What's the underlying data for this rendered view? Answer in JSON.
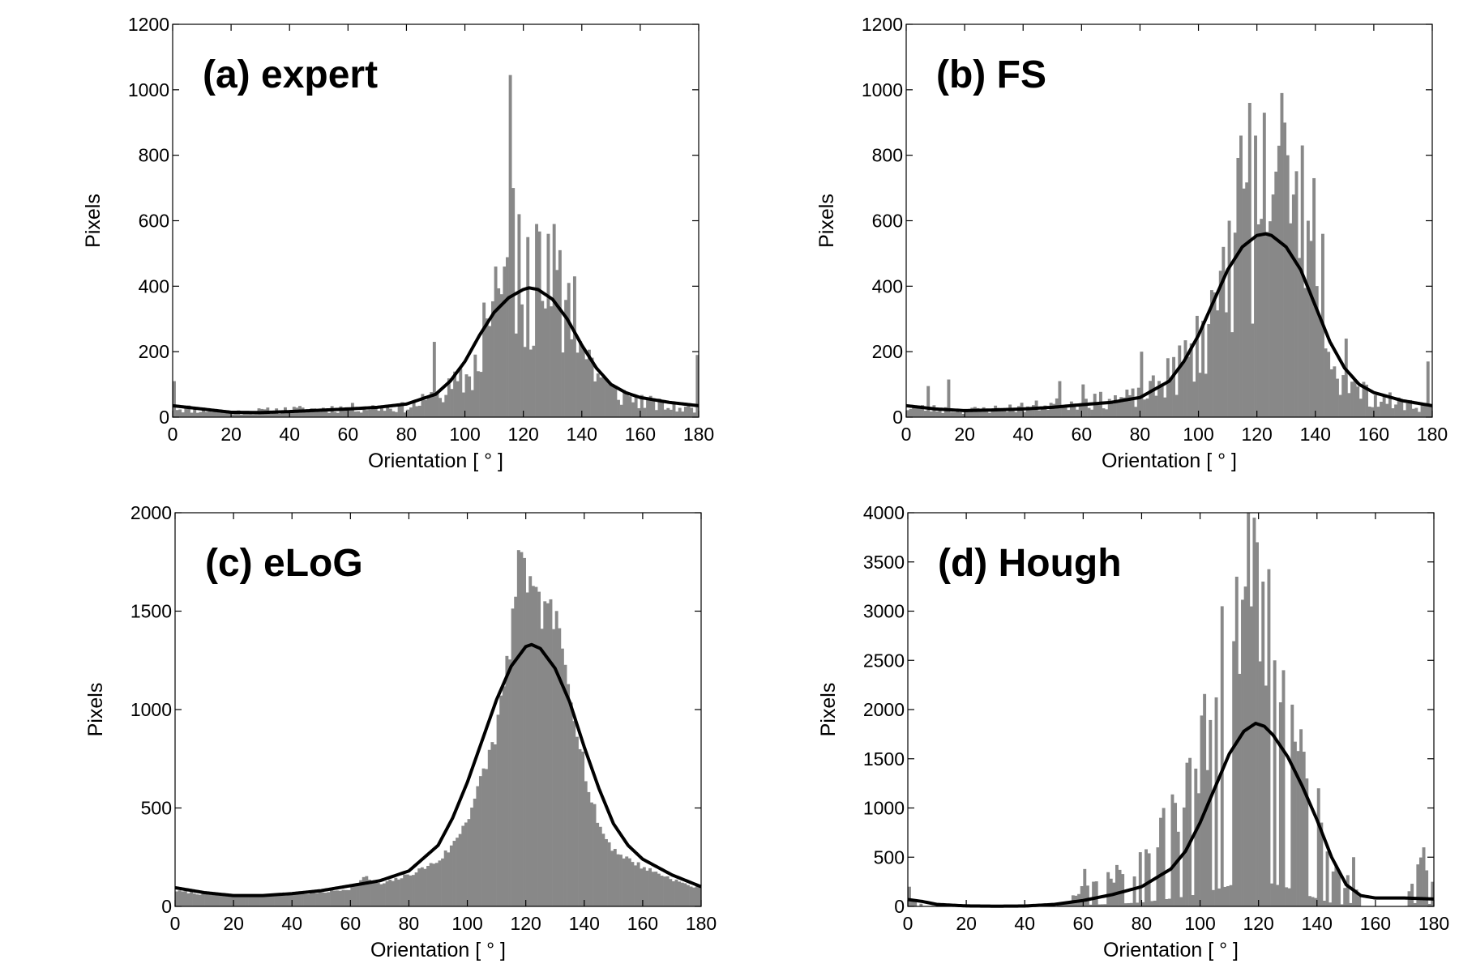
{
  "figure": {
    "width": 1800,
    "height": 1200
  },
  "colors": {
    "bar": "#888888",
    "fit": "#000000",
    "axis": "#000000"
  },
  "chart_data": [
    {
      "type": "bar",
      "title": "(a) expert",
      "xlabel": "Orientation [ ° ]",
      "ylabel": "Pixels",
      "xlim": [
        0,
        180
      ],
      "ylim": [
        0,
        1200
      ],
      "xticks": [
        0,
        20,
        40,
        60,
        80,
        100,
        120,
        140,
        160,
        180
      ],
      "yticks": [
        0,
        200,
        400,
        600,
        800,
        1000,
        1200
      ],
      "hist_profile": [
        [
          0,
          30
        ],
        [
          20,
          15
        ],
        [
          40,
          22
        ],
        [
          60,
          28
        ],
        [
          80,
          30
        ],
        [
          90,
          60
        ],
        [
          100,
          110
        ],
        [
          105,
          180
        ],
        [
          110,
          330
        ],
        [
          115,
          380
        ],
        [
          120,
          410
        ],
        [
          125,
          390
        ],
        [
          130,
          370
        ],
        [
          135,
          300
        ],
        [
          140,
          220
        ],
        [
          145,
          140
        ],
        [
          150,
          80
        ],
        [
          160,
          50
        ],
        [
          170,
          30
        ],
        [
          180,
          25
        ]
      ],
      "spikes": [
        [
          0,
          110
        ],
        [
          89,
          230
        ],
        [
          106,
          350
        ],
        [
          110,
          460
        ],
        [
          113,
          460
        ],
        [
          115,
          1045
        ],
        [
          116,
          700
        ],
        [
          118,
          620
        ],
        [
          121,
          550
        ],
        [
          124,
          590
        ],
        [
          128,
          560
        ],
        [
          130,
          590
        ],
        [
          132,
          510
        ],
        [
          135,
          410
        ],
        [
          137,
          430
        ],
        [
          179,
          190
        ],
        [
          180,
          110
        ]
      ],
      "fit_profile": [
        [
          0,
          35
        ],
        [
          10,
          25
        ],
        [
          20,
          15
        ],
        [
          30,
          14
        ],
        [
          40,
          17
        ],
        [
          50,
          21
        ],
        [
          60,
          25
        ],
        [
          70,
          30
        ],
        [
          80,
          40
        ],
        [
          90,
          70
        ],
        [
          95,
          110
        ],
        [
          100,
          170
        ],
        [
          105,
          250
        ],
        [
          110,
          320
        ],
        [
          115,
          365
        ],
        [
          120,
          390
        ],
        [
          122,
          395
        ],
        [
          125,
          390
        ],
        [
          130,
          360
        ],
        [
          135,
          300
        ],
        [
          140,
          220
        ],
        [
          145,
          150
        ],
        [
          150,
          100
        ],
        [
          155,
          75
        ],
        [
          160,
          60
        ],
        [
          170,
          45
        ],
        [
          180,
          35
        ]
      ],
      "seed": 11
    },
    {
      "type": "bar",
      "title": "(b) FS",
      "xlabel": "Orientation [ ° ]",
      "ylabel": "Pixels",
      "xlim": [
        0,
        180
      ],
      "ylim": [
        0,
        1200
      ],
      "xticks": [
        0,
        20,
        40,
        60,
        80,
        100,
        120,
        140,
        160,
        180
      ],
      "yticks": [
        0,
        200,
        400,
        600,
        800,
        1000,
        1200
      ],
      "hist_profile": [
        [
          0,
          30
        ],
        [
          20,
          20
        ],
        [
          40,
          30
        ],
        [
          60,
          45
        ],
        [
          80,
          60
        ],
        [
          90,
          110
        ],
        [
          100,
          220
        ],
        [
          105,
          320
        ],
        [
          110,
          480
        ],
        [
          115,
          620
        ],
        [
          120,
          640
        ],
        [
          125,
          620
        ],
        [
          130,
          600
        ],
        [
          135,
          480
        ],
        [
          140,
          330
        ],
        [
          145,
          190
        ],
        [
          150,
          100
        ],
        [
          160,
          60
        ],
        [
          170,
          40
        ],
        [
          180,
          30
        ]
      ],
      "spikes": [
        [
          7,
          95
        ],
        [
          14,
          115
        ],
        [
          52,
          110
        ],
        [
          60,
          100
        ],
        [
          80,
          200
        ],
        [
          89,
          180
        ],
        [
          108,
          520
        ],
        [
          110,
          600
        ],
        [
          114,
          860
        ],
        [
          117,
          960
        ],
        [
          119,
          860
        ],
        [
          122,
          930
        ],
        [
          126,
          750
        ],
        [
          128,
          990
        ],
        [
          130,
          800
        ],
        [
          132,
          680
        ],
        [
          135,
          830
        ],
        [
          137,
          600
        ],
        [
          139,
          730
        ],
        [
          142,
          560
        ],
        [
          150,
          240
        ],
        [
          178,
          170
        ]
      ],
      "fit_profile": [
        [
          0,
          35
        ],
        [
          10,
          25
        ],
        [
          20,
          20
        ],
        [
          30,
          22
        ],
        [
          40,
          25
        ],
        [
          50,
          30
        ],
        [
          60,
          38
        ],
        [
          70,
          45
        ],
        [
          80,
          60
        ],
        [
          90,
          110
        ],
        [
          95,
          170
        ],
        [
          100,
          250
        ],
        [
          105,
          350
        ],
        [
          110,
          450
        ],
        [
          115,
          520
        ],
        [
          120,
          555
        ],
        [
          123,
          560
        ],
        [
          125,
          555
        ],
        [
          130,
          520
        ],
        [
          135,
          450
        ],
        [
          140,
          340
        ],
        [
          145,
          230
        ],
        [
          150,
          150
        ],
        [
          155,
          100
        ],
        [
          160,
          75
        ],
        [
          170,
          50
        ],
        [
          180,
          35
        ]
      ],
      "seed": 23
    },
    {
      "type": "bar",
      "title": "(c) eLoG",
      "xlabel": "Orientation [ ° ]",
      "ylabel": "Pixels",
      "xlim": [
        0,
        180
      ],
      "ylim": [
        0,
        2000
      ],
      "xticks": [
        0,
        20,
        40,
        60,
        80,
        100,
        120,
        140,
        160,
        180
      ],
      "yticks": [
        0,
        500,
        1000,
        1500,
        2000
      ],
      "hist_profile": [
        [
          0,
          80
        ],
        [
          10,
          60
        ],
        [
          20,
          55
        ],
        [
          30,
          55
        ],
        [
          40,
          60
        ],
        [
          50,
          70
        ],
        [
          60,
          90
        ],
        [
          65,
          150
        ],
        [
          70,
          110
        ],
        [
          80,
          160
        ],
        [
          90,
          230
        ],
        [
          95,
          310
        ],
        [
          100,
          450
        ],
        [
          105,
          650
        ],
        [
          110,
          900
        ],
        [
          113,
          1150
        ],
        [
          115,
          1400
        ],
        [
          117,
          1650
        ],
        [
          119,
          1720
        ],
        [
          121,
          1620
        ],
        [
          124,
          1500
        ],
        [
          127,
          1520
        ],
        [
          130,
          1450
        ],
        [
          133,
          1250
        ],
        [
          136,
          1050
        ],
        [
          139,
          800
        ],
        [
          142,
          550
        ],
        [
          146,
          380
        ],
        [
          150,
          290
        ],
        [
          155,
          240
        ],
        [
          160,
          200
        ],
        [
          165,
          170
        ],
        [
          170,
          140
        ],
        [
          175,
          110
        ],
        [
          180,
          90
        ]
      ],
      "spikes": [
        [
          117,
          1810
        ],
        [
          118,
          1800
        ],
        [
          119,
          1770
        ],
        [
          126,
          1550
        ],
        [
          127,
          1540
        ],
        [
          128,
          1560
        ]
      ],
      "fit_profile": [
        [
          0,
          95
        ],
        [
          10,
          70
        ],
        [
          20,
          55
        ],
        [
          30,
          55
        ],
        [
          40,
          65
        ],
        [
          50,
          80
        ],
        [
          60,
          105
        ],
        [
          70,
          130
        ],
        [
          80,
          180
        ],
        [
          90,
          310
        ],
        [
          95,
          450
        ],
        [
          100,
          630
        ],
        [
          105,
          840
        ],
        [
          110,
          1050
        ],
        [
          115,
          1220
        ],
        [
          120,
          1320
        ],
        [
          122,
          1330
        ],
        [
          125,
          1310
        ],
        [
          130,
          1210
        ],
        [
          135,
          1040
        ],
        [
          140,
          810
        ],
        [
          145,
          600
        ],
        [
          150,
          420
        ],
        [
          155,
          310
        ],
        [
          160,
          240
        ],
        [
          170,
          160
        ],
        [
          180,
          100
        ]
      ],
      "seed": 7,
      "jitter": 0.07
    },
    {
      "type": "bar",
      "title": "(d) Hough",
      "xlabel": "Orientation [ ° ]",
      "ylabel": "Pixels",
      "xlim": [
        0,
        180
      ],
      "ylim": [
        0,
        4000
      ],
      "xticks": [
        0,
        20,
        40,
        60,
        80,
        100,
        120,
        140,
        160,
        180
      ],
      "yticks": [
        0,
        500,
        1000,
        1500,
        2000,
        2500,
        3000,
        3500,
        4000
      ],
      "hist_profile": [
        [
          0,
          40
        ],
        [
          10,
          0
        ],
        [
          50,
          0
        ],
        [
          55,
          40
        ],
        [
          60,
          150
        ],
        [
          70,
          250
        ],
        [
          80,
          400
        ],
        [
          85,
          600
        ],
        [
          90,
          800
        ],
        [
          95,
          1000
        ],
        [
          100,
          1300
        ],
        [
          105,
          1700
        ],
        [
          110,
          2100
        ],
        [
          115,
          2700
        ],
        [
          118,
          2900
        ],
        [
          120,
          2600
        ],
        [
          125,
          2300
        ],
        [
          130,
          1900
        ],
        [
          135,
          1300
        ],
        [
          140,
          800
        ],
        [
          145,
          350
        ],
        [
          150,
          150
        ],
        [
          152,
          400
        ],
        [
          155,
          0
        ],
        [
          170,
          0
        ],
        [
          173,
          300
        ],
        [
          176,
          500
        ],
        [
          178,
          300
        ],
        [
          180,
          100
        ]
      ],
      "spikes": [
        [
          0,
          200
        ],
        [
          60,
          380
        ],
        [
          85,
          600
        ],
        [
          86,
          900
        ],
        [
          87,
          1000
        ],
        [
          98,
          1400
        ],
        [
          107,
          3050
        ],
        [
          112,
          3350
        ],
        [
          115,
          3250
        ],
        [
          118,
          3950
        ],
        [
          119,
          3700
        ],
        [
          121,
          3300
        ],
        [
          125,
          2500
        ],
        [
          128,
          2400
        ],
        [
          131,
          2050
        ],
        [
          134,
          1800
        ],
        [
          136,
          1300
        ],
        [
          140,
          1200
        ],
        [
          152,
          500
        ],
        [
          176,
          600
        ],
        [
          179,
          250
        ]
      ],
      "fit_profile": [
        [
          0,
          70
        ],
        [
          5,
          50
        ],
        [
          10,
          20
        ],
        [
          20,
          5
        ],
        [
          30,
          2
        ],
        [
          40,
          4
        ],
        [
          50,
          20
        ],
        [
          60,
          60
        ],
        [
          70,
          120
        ],
        [
          80,
          200
        ],
        [
          90,
          380
        ],
        [
          95,
          560
        ],
        [
          100,
          850
        ],
        [
          105,
          1200
        ],
        [
          110,
          1550
        ],
        [
          115,
          1780
        ],
        [
          119,
          1860
        ],
        [
          122,
          1830
        ],
        [
          125,
          1740
        ],
        [
          130,
          1520
        ],
        [
          135,
          1220
        ],
        [
          140,
          880
        ],
        [
          145,
          500
        ],
        [
          150,
          220
        ],
        [
          155,
          110
        ],
        [
          160,
          85
        ],
        [
          170,
          85
        ],
        [
          180,
          75
        ]
      ],
      "seed": 41,
      "sparse": true
    }
  ]
}
